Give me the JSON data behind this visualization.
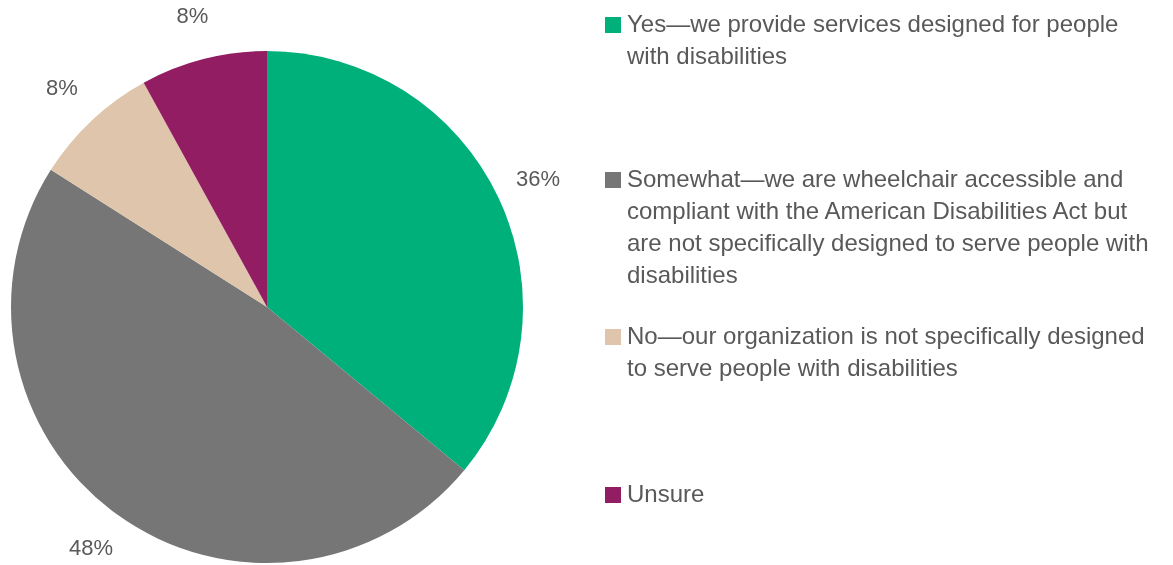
{
  "chart_data": {
    "type": "pie",
    "categories": [
      "Yes—we provide services designed for people with disabilities",
      "Somewhat—we are wheelchair accessible and compliant with the American Disabilities Act but are not specifically designed to serve people with disabilities",
      "No—our organization is not specifically designed to serve people with disabilities",
      "Unsure"
    ],
    "values": [
      36,
      48,
      8,
      8
    ],
    "colors": [
      "#00b07a",
      "#767676",
      "#dfc5ab",
      "#931d63"
    ],
    "value_labels": [
      "36%",
      "48%",
      "8%",
      "8%"
    ],
    "legend": "right"
  }
}
